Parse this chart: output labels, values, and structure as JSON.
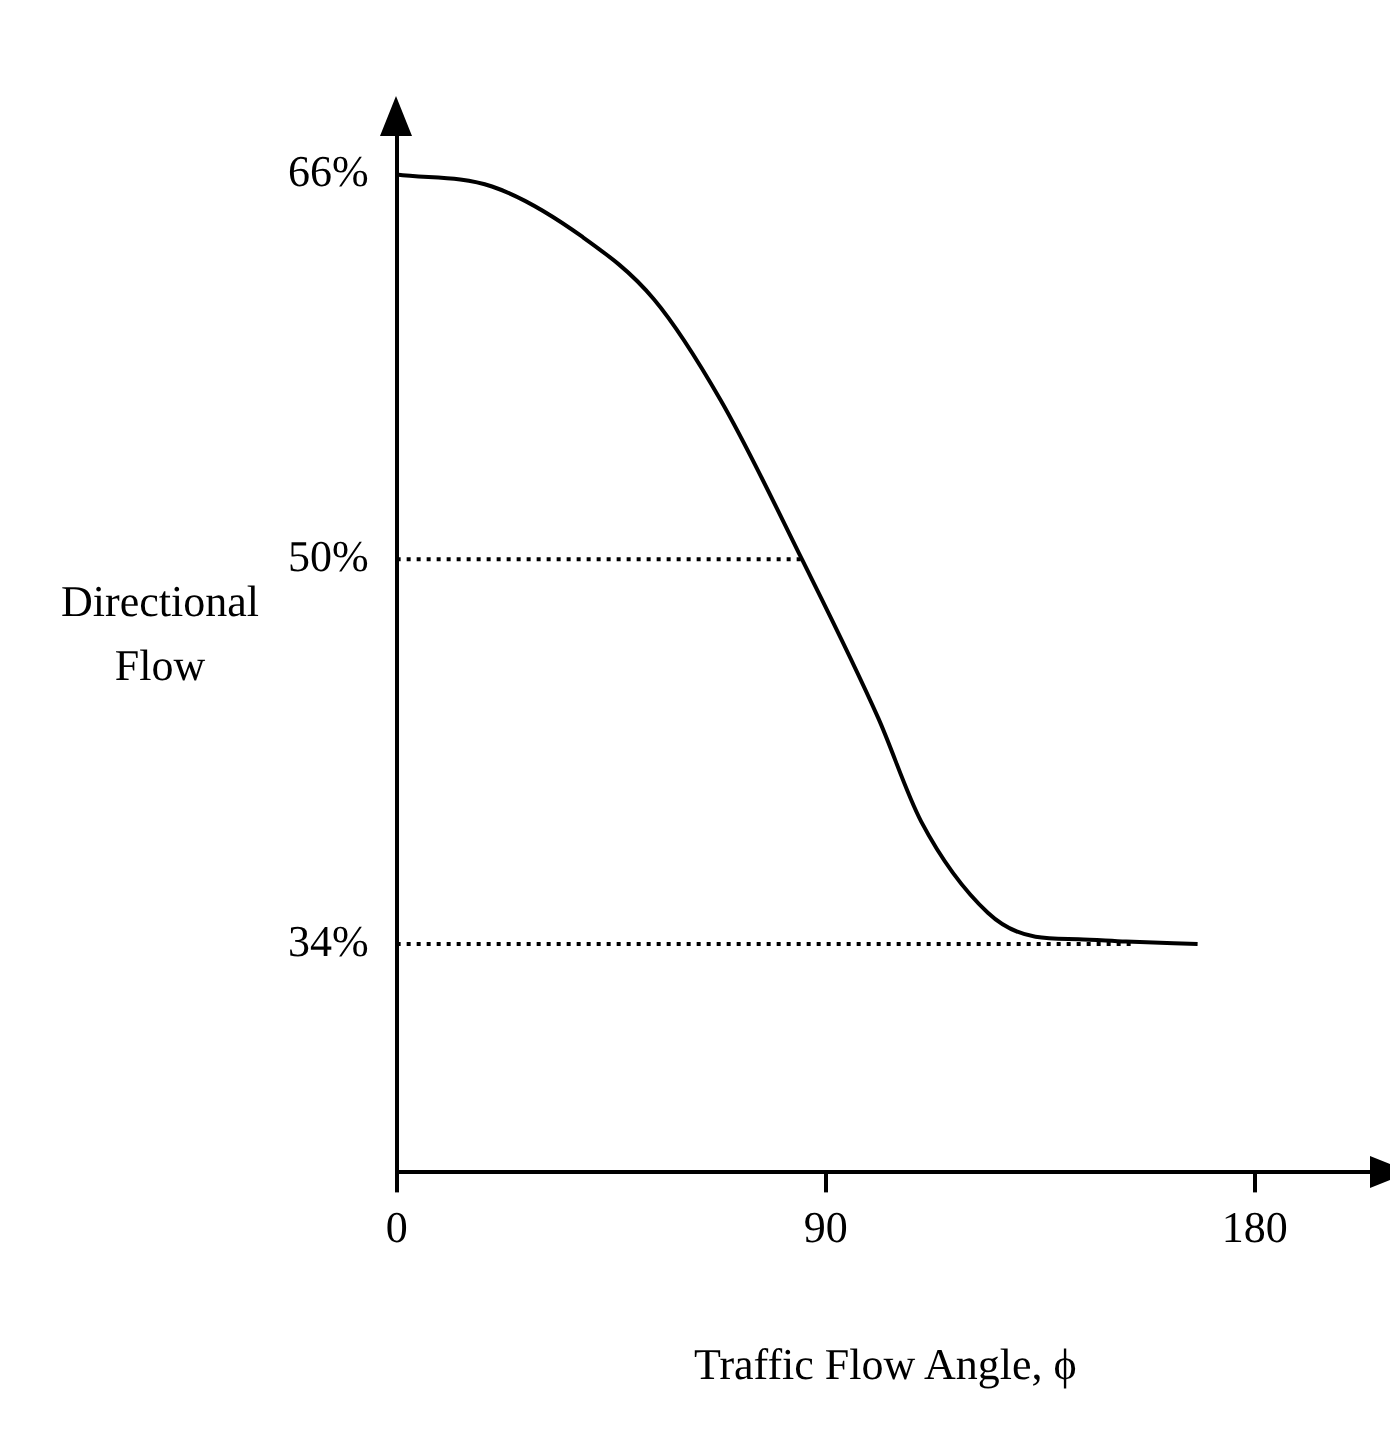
{
  "chart_data": {
    "type": "line",
    "xlabel": "Traffic Flow Angle, ϕ",
    "ylabel": "Directional Flow",
    "xlim": [
      0,
      205
    ],
    "ylim": [
      24.5,
      67.6
    ],
    "xticks": [
      0,
      90,
      180
    ],
    "yticks": [
      {
        "value": 34,
        "label": "34%"
      },
      {
        "value": 50,
        "label": "50%"
      },
      {
        "value": 66,
        "label": "66%"
      }
    ],
    "grid": false,
    "legend": false,
    "marker": "none",
    "series": [
      {
        "color": "#000000",
        "line_style": "solid",
        "x": [
          0,
          20,
          39,
          54,
          68,
          85,
          101,
          110,
          124,
          134,
          143,
          153,
          168
        ],
        "values": [
          66,
          65.5,
          63.4,
          60.8,
          56.6,
          50,
          43.4,
          39.1,
          35.3,
          34.3,
          34.2,
          34.1,
          34
        ]
      },
      {
        "color": "#000000",
        "line_style": "dotted",
        "x": [
          0,
          85
        ],
        "values": [
          50,
          50
        ]
      },
      {
        "color": "#000000",
        "line_style": "dotted",
        "x": [
          0,
          154
        ],
        "values": [
          34,
          34
        ]
      }
    ]
  }
}
